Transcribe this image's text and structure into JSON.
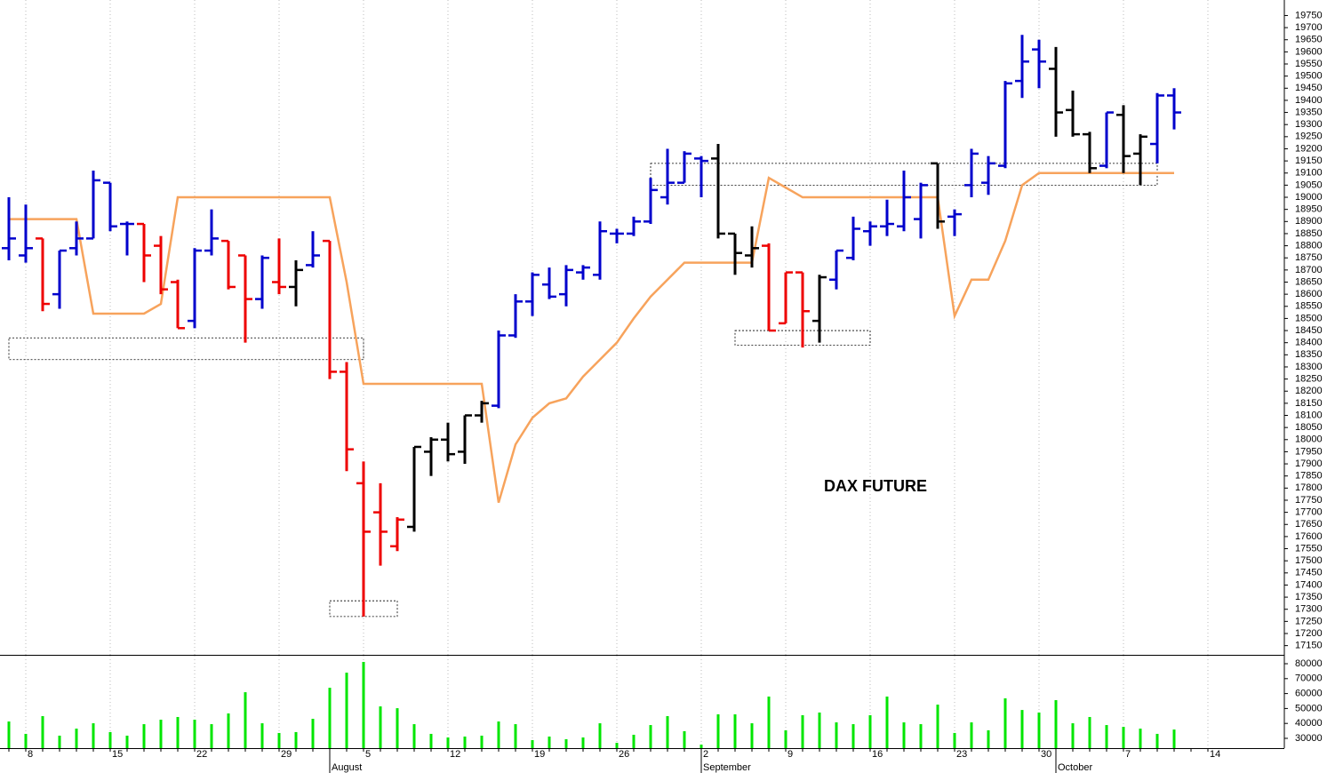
{
  "chart_data": [
    {
      "type": "ohlc",
      "title": "DAX FUTURE",
      "categories": [
        null,
        "8",
        null,
        null,
        null,
        null,
        "15",
        null,
        null,
        null,
        null,
        "22",
        null,
        null,
        null,
        null,
        "29",
        null,
        null,
        null,
        null,
        "5",
        null,
        null,
        null,
        null,
        "12",
        null,
        null,
        null,
        null,
        "19",
        null,
        null,
        null,
        null,
        "26",
        null,
        null,
        null,
        null,
        "2",
        null,
        null,
        null,
        null,
        "9",
        null,
        null,
        null,
        null,
        "16",
        null,
        null,
        null,
        null,
        "23",
        null,
        null,
        null,
        null,
        "30",
        null,
        null,
        null,
        null,
        "7",
        null,
        null,
        null,
        null,
        "14"
      ],
      "months": [
        null,
        null,
        null,
        null,
        null,
        null,
        null,
        null,
        null,
        null,
        null,
        null,
        null,
        null,
        null,
        null,
        null,
        null,
        null,
        "August",
        null,
        null,
        null,
        null,
        null,
        null,
        null,
        null,
        null,
        null,
        null,
        null,
        null,
        null,
        null,
        null,
        null,
        null,
        null,
        null,
        null,
        "September",
        null,
        null,
        null,
        null,
        null,
        null,
        null,
        null,
        null,
        null,
        null,
        null,
        null,
        null,
        null,
        null,
        null,
        null,
        null,
        null,
        "October",
        null,
        null,
        null,
        null,
        null,
        null,
        null,
        null,
        null
      ],
      "open": [
        18790,
        18760,
        18830,
        18600,
        18790,
        18830,
        19060,
        18890,
        18890,
        18800,
        18650,
        18490,
        18780,
        18820,
        18760,
        18580,
        18650,
        18630,
        18720,
        18820,
        18280,
        17820,
        17700,
        17560,
        17640,
        17950,
        18000,
        17950,
        18100,
        18140,
        18430,
        18570,
        18640,
        18600,
        18690,
        18680,
        18850,
        18850,
        18900,
        19000,
        19060,
        19160,
        19160,
        18850,
        18760,
        18800,
        18480,
        18690,
        18490,
        18660,
        18750,
        18860,
        18880,
        18880,
        18910,
        19140,
        18920,
        19050,
        19060,
        19130,
        19480,
        19610,
        19530,
        19360,
        19260,
        19130,
        19340,
        19180,
        19220,
        19420,
        null,
        null
      ],
      "high": [
        19000,
        18970,
        18830,
        18780,
        18900,
        19110,
        19060,
        18900,
        18890,
        18840,
        18660,
        18790,
        18950,
        18820,
        18760,
        18760,
        18830,
        18740,
        18860,
        18820,
        18320,
        17910,
        17820,
        17680,
        17970,
        18010,
        18070,
        18100,
        18160,
        18450,
        18600,
        18690,
        18710,
        18720,
        18720,
        18900,
        18870,
        18920,
        19080,
        19200,
        19190,
        19170,
        19220,
        18850,
        18880,
        18810,
        18690,
        18690,
        18680,
        18780,
        18920,
        18900,
        18990,
        19110,
        19060,
        19140,
        18950,
        19200,
        19170,
        19480,
        19670,
        19650,
        19620,
        19440,
        19270,
        19350,
        19380,
        19260,
        19430,
        19450,
        null,
        null
      ],
      "low": [
        18740,
        18730,
        18530,
        18540,
        18760,
        18830,
        18860,
        18760,
        18650,
        18600,
        18460,
        18460,
        18760,
        18620,
        18400,
        18540,
        18600,
        18550,
        18710,
        18250,
        17870,
        17270,
        17480,
        17540,
        17620,
        17850,
        17910,
        17900,
        18070,
        18130,
        18420,
        18510,
        18580,
        18550,
        18660,
        18660,
        18810,
        18840,
        18890,
        18970,
        19060,
        19000,
        18830,
        18680,
        18710,
        18450,
        18480,
        18380,
        18400,
        18620,
        18740,
        18800,
        18840,
        18860,
        18830,
        18870,
        18840,
        19000,
        19010,
        19120,
        19410,
        19450,
        19250,
        19250,
        19100,
        19120,
        19100,
        19050,
        19140,
        19280,
        null,
        null
      ],
      "close": [
        18830,
        18790,
        18560,
        18780,
        18830,
        19070,
        18880,
        18890,
        18760,
        18620,
        18460,
        18780,
        18830,
        18630,
        18580,
        18750,
        18630,
        18700,
        18760,
        18280,
        17960,
        17620,
        17620,
        17670,
        17970,
        18000,
        17940,
        18100,
        18150,
        18430,
        18570,
        18680,
        18590,
        18700,
        18710,
        18860,
        18850,
        18900,
        19030,
        19060,
        19180,
        19150,
        18850,
        18770,
        18790,
        18450,
        18690,
        18530,
        18670,
        18780,
        18870,
        18880,
        18890,
        19000,
        19050,
        18900,
        18930,
        19180,
        19140,
        19470,
        19560,
        19560,
        19350,
        19260,
        19120,
        19350,
        19170,
        19250,
        19420,
        19350,
        null,
        null
      ],
      "bar_colors": [
        "#0000cc",
        "#0000cc",
        "#ee0000",
        "#0000cc",
        "#0000cc",
        "#0000cc",
        "#0000cc",
        "#0000cc",
        "#ee0000",
        "#ee0000",
        "#ee0000",
        "#0000cc",
        "#0000cc",
        "#ee0000",
        "#ee0000",
        "#0000cc",
        "#ee0000",
        "#000000",
        "#0000cc",
        "#ee0000",
        "#ee0000",
        "#ee0000",
        "#ee0000",
        "#ee0000",
        "#000000",
        "#000000",
        "#000000",
        "#000000",
        "#000000",
        "#0000cc",
        "#0000cc",
        "#0000cc",
        "#0000cc",
        "#0000cc",
        "#0000cc",
        "#0000cc",
        "#0000cc",
        "#0000cc",
        "#0000cc",
        "#0000cc",
        "#0000cc",
        "#0000cc",
        "#000000",
        "#000000",
        "#000000",
        "#ee0000",
        "#ee0000",
        "#ee0000",
        "#000000",
        "#0000cc",
        "#0000cc",
        "#0000cc",
        "#0000cc",
        "#0000cc",
        "#0000cc",
        "#000000",
        "#0000cc",
        "#0000cc",
        "#0000cc",
        "#0000cc",
        "#0000cc",
        "#0000cc",
        "#000000",
        "#000000",
        "#000000",
        "#0000cc",
        "#000000",
        "#000000",
        "#0000cc",
        "#0000cc",
        null,
        null
      ],
      "overlay": {
        "color": "#f7a35c",
        "values": [
          18910,
          18910,
          18910,
          18910,
          18910,
          18520,
          18520,
          18520,
          18520,
          18560,
          19000,
          19000,
          19000,
          19000,
          19000,
          19000,
          19000,
          19000,
          19000,
          19000,
          18650,
          18230,
          18230,
          18230,
          18230,
          18230,
          18230,
          18230,
          18230,
          17740,
          17980,
          18090,
          18150,
          18170,
          18260,
          18330,
          18400,
          18500,
          18590,
          18660,
          18730,
          18730,
          18730,
          18730,
          18730,
          19080,
          19040,
          19000,
          19000,
          19000,
          19000,
          19000,
          19000,
          19000,
          19000,
          19000,
          18510,
          18660,
          18660,
          18820,
          19050,
          19100,
          19100,
          19100,
          19100,
          19100,
          19100,
          19100,
          19100,
          19100,
          null,
          null
        ]
      },
      "zones": [
        {
          "from": 0,
          "to": 21,
          "low": 18330,
          "high": 18420
        },
        {
          "from": 19,
          "to": 23,
          "low": 17270,
          "high": 17335
        },
        {
          "from": 38,
          "to": 68,
          "low": 19050,
          "high": 19140
        },
        {
          "from": 43,
          "to": 51,
          "low": 18390,
          "high": 18450
        }
      ],
      "ylim": [
        17112,
        19814
      ],
      "yticks": [
        17150,
        17200,
        17250,
        17300,
        17350,
        17400,
        17450,
        17500,
        17550,
        17600,
        17650,
        17700,
        17750,
        17800,
        17850,
        17900,
        17950,
        18000,
        18050,
        18100,
        18150,
        18200,
        18250,
        18300,
        18350,
        18400,
        18450,
        18500,
        18550,
        18600,
        18650,
        18700,
        18750,
        18800,
        18850,
        18900,
        18950,
        19000,
        19050,
        19100,
        19150,
        19200,
        19250,
        19300,
        19350,
        19400,
        19450,
        19500,
        19550,
        19600,
        19650,
        19700,
        19750
      ]
    },
    {
      "type": "bar",
      "color": "#00e600",
      "values": [
        41300,
        33000,
        44900,
        31800,
        36500,
        40100,
        34200,
        31800,
        39500,
        42500,
        44300,
        42500,
        39500,
        46700,
        60900,
        40100,
        33600,
        34200,
        43100,
        63900,
        74000,
        81200,
        51400,
        50200,
        39500,
        33000,
        30600,
        31200,
        31800,
        41300,
        39500,
        28800,
        31200,
        29400,
        30600,
        40100,
        27000,
        32400,
        38900,
        44900,
        34800,
        25800,
        46100,
        46100,
        40100,
        58000,
        35400,
        45500,
        47300,
        40700,
        39500,
        45500,
        58000,
        40700,
        39500,
        52600,
        33600,
        40700,
        35400,
        56800,
        49000,
        47300,
        55600,
        40100,
        44300,
        38900,
        37700,
        36500,
        33000,
        35900,
        null,
        null
      ],
      "ylim": [
        23450,
        85360
      ],
      "yticks": [
        30000,
        40000,
        50000,
        60000,
        70000,
        80000
      ]
    }
  ]
}
